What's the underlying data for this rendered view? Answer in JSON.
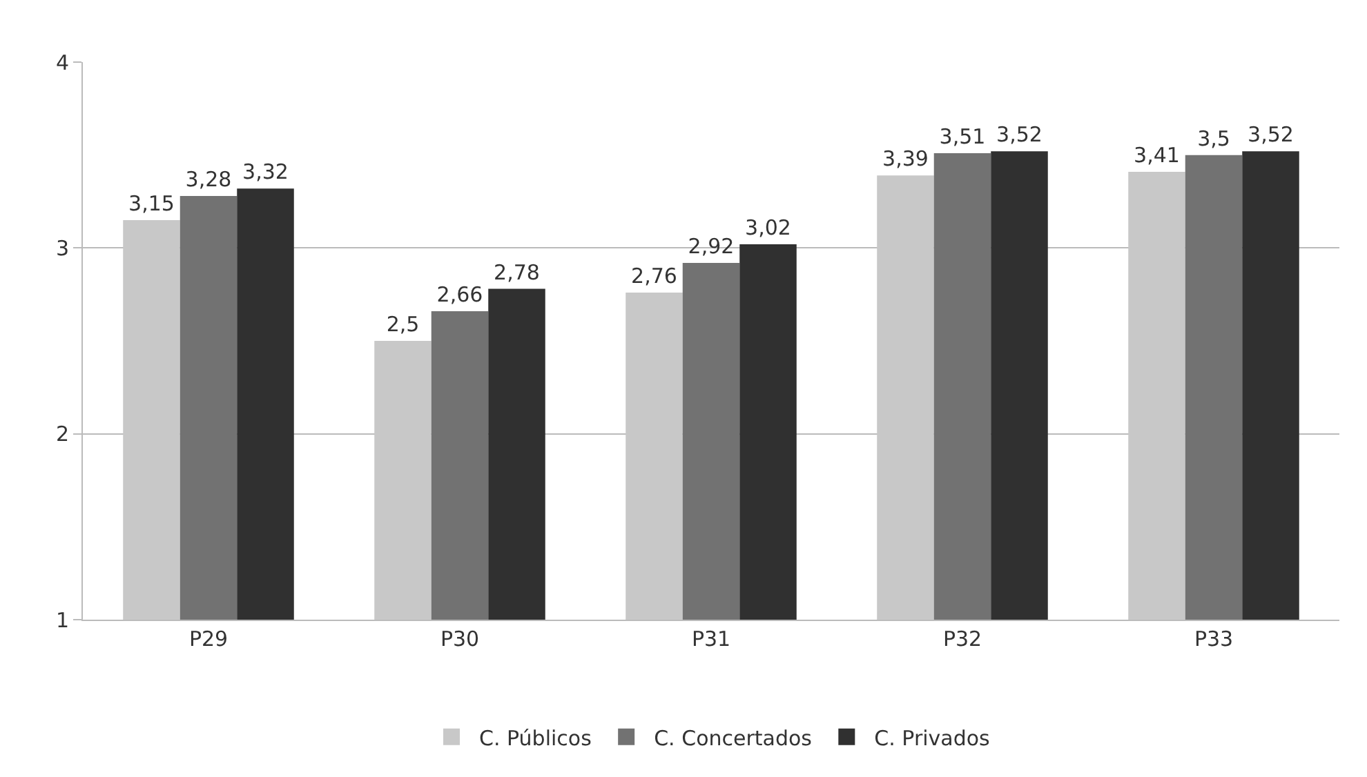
{
  "chart_data": {
    "type": "bar",
    "categories": [
      "P29",
      "P30",
      "P31",
      "P32",
      "P33"
    ],
    "series": [
      {
        "name": "C. Públicos",
        "color": "#c8c8c8",
        "values": [
          3.15,
          2.5,
          2.76,
          3.39,
          3.41
        ],
        "value_labels": [
          "3,15",
          "2,5",
          "2,76",
          "3,39",
          "3,41"
        ]
      },
      {
        "name": "C. Concertados",
        "color": "#727272",
        "values": [
          3.28,
          2.66,
          2.92,
          3.51,
          3.5
        ],
        "value_labels": [
          "3,28",
          "2,66",
          "2,92",
          "3,51",
          "3,5"
        ]
      },
      {
        "name": "C. Privados",
        "color": "#303030",
        "values": [
          3.32,
          2.78,
          3.02,
          3.52,
          3.52
        ],
        "value_labels": [
          "3,32",
          "2,78",
          "3,02",
          "3,52",
          "3,52"
        ]
      }
    ],
    "ylim": [
      1,
      4
    ],
    "yticks": [
      1,
      2,
      3,
      4
    ],
    "grid": "y",
    "legend": "bottom"
  }
}
